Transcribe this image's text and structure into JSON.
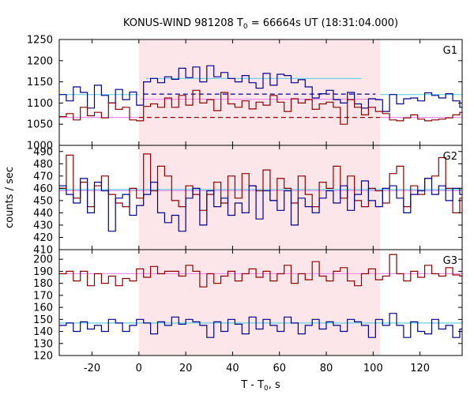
{
  "chart_data": {
    "type": "line",
    "title": "KONUS-WIND 981208 T",
    "title_sub": "0",
    "title_rest": " = 66664s UT (18:31:04.000)",
    "xlabel": "T - T",
    "xlabel_sub": "0",
    "xlabel_rest": ", s",
    "ylabel": "counts / sec",
    "xlim": [
      -34,
      138
    ],
    "x_ticks": [
      -20,
      0,
      20,
      40,
      60,
      80,
      100,
      120
    ],
    "x_tick_labels": [
      "-20",
      "0",
      "20",
      "40",
      "60",
      "80",
      "100",
      "120"
    ],
    "highlight_interval": {
      "x": [
        0,
        103
      ],
      "color": "#fde6ea"
    },
    "bin_edges_start": -34,
    "bin_width": 3,
    "colors": {
      "red": "#8b0000",
      "blue": "#00008b",
      "pink": "#f08cf0",
      "cyan": "#5fd2e6"
    },
    "panels": [
      {
        "label": "G1",
        "ylim": [
          1000,
          1250
        ],
        "y_ticks": [
          1000,
          1050,
          1100,
          1150,
          1200,
          1250
        ],
        "y_tick_labels": [
          "1000",
          "1050",
          "1100",
          "1150",
          "1200",
          "1250"
        ],
        "series": [
          {
            "color": "blue",
            "values": [
              1120,
              1105,
              1138,
              1125,
              1088,
              1142,
              1118,
              1100,
              1132,
              1108,
              1126,
              1095,
              1150,
              1158,
              1148,
              1162,
              1156,
              1182,
              1160,
              1185,
              1150,
              1188,
              1162,
              1172,
              1158,
              1150,
              1165,
              1148,
              1135,
              1170,
              1142,
              1168,
              1165,
              1148,
              1155,
              1138,
              1112,
              1122,
              1130,
              1108,
              1100,
              1125,
              1098,
              1088,
              1110,
              1108,
              1080,
              1120,
              1098,
              1110,
              1112,
              1105,
              1124,
              1118,
              1112,
              1122,
              1105,
              1090
            ]
          },
          {
            "color": "red",
            "values": [
              1068,
              1075,
              1060,
              1090,
              1070,
              1078,
              1065,
              1100,
              1085,
              1090,
              1060,
              1058,
              1092,
              1098,
              1090,
              1112,
              1090,
              1118,
              1095,
              1130,
              1100,
              1108,
              1082,
              1125,
              1098,
              1090,
              1105,
              1086,
              1102,
              1095,
              1118,
              1102,
              1080,
              1110,
              1100,
              1108,
              1085,
              1098,
              1102,
              1090,
              1050,
              1108,
              1090,
              1072,
              1090,
              1080,
              1075,
              1060,
              1058,
              1065,
              1072,
              1062,
              1058,
              1060,
              1062,
              1065,
              1072,
              1078
            ]
          }
        ],
        "levels": [
          {
            "color": "blue",
            "style": "dash",
            "y": 1121,
            "x": [
              2,
              101
            ]
          },
          {
            "color": "red",
            "style": "dash",
            "y": 1066,
            "x": [
              0,
              103
            ]
          },
          {
            "color": "cyan",
            "style": "solid",
            "y": 1120,
            "x": [
              -34,
              0
            ]
          },
          {
            "color": "cyan",
            "style": "solid",
            "y": 1158,
            "x": [
              3,
              95
            ]
          },
          {
            "color": "cyan",
            "style": "solid",
            "y": 1120,
            "x": [
              103,
              138
            ]
          },
          {
            "color": "pink",
            "style": "solid",
            "y": 1066,
            "x": [
              -34,
              0
            ]
          },
          {
            "color": "pink",
            "style": "solid",
            "y": 1109,
            "x": [
              1,
              103
            ]
          },
          {
            "color": "pink",
            "style": "solid",
            "y": 1066,
            "x": [
              103,
              138
            ]
          }
        ]
      },
      {
        "label": "G2",
        "ylim": [
          410,
          495
        ],
        "y_ticks": [
          410,
          420,
          430,
          440,
          450,
          460,
          470,
          480,
          490
        ],
        "y_tick_labels": [
          "410",
          "420",
          "430",
          "440",
          "450",
          "460",
          "470",
          "480",
          "490"
        ],
        "series": [
          {
            "color": "red",
            "values": [
              460,
              487,
              452,
              465,
              445,
              462,
              470,
              455,
              448,
              445,
              460,
              452,
              488,
              458,
              478,
              470,
              450,
              445,
              462,
              455,
              442,
              455,
              465,
              448,
              470,
              452,
              472,
              462,
              458,
              475,
              450,
              468,
              460,
              448,
              470,
              455,
              445,
              465,
              460,
              478,
              452,
              470,
              450,
              445,
              460,
              458,
              448,
              472,
              478,
              445,
              462,
              455,
              468,
              470,
              485,
              460,
              440,
              452
            ]
          },
          {
            "color": "blue",
            "values": [
              462,
              455,
              448,
              468,
              440,
              465,
              458,
              425,
              452,
              455,
              438,
              446,
              455,
              465,
              440,
              432,
              438,
              425,
              452,
              460,
              430,
              458,
              445,
              452,
              438,
              448,
              440,
              462,
              435,
              458,
              450,
              442,
              458,
              430,
              452,
              445,
              440,
              452,
              458,
              448,
              462,
              442,
              455,
              466,
              450,
              445,
              460,
              462,
              452,
              440,
              455,
              458,
              468,
              455,
              462,
              450,
              460,
              455
            ]
          }
        ],
        "levels": [
          {
            "color": "pink",
            "style": "solid",
            "y": 458,
            "x": [
              -34,
              138
            ]
          },
          {
            "color": "cyan",
            "style": "solid",
            "y": 459,
            "x": [
              -34,
              138
            ]
          }
        ]
      },
      {
        "label": "G3",
        "ylim": [
          120,
          208
        ],
        "y_ticks": [
          120,
          130,
          140,
          150,
          160,
          170,
          180,
          190,
          200
        ],
        "y_tick_labels": [
          "120",
          "130",
          "140",
          "150",
          "160",
          "170",
          "180",
          "190",
          "200"
        ],
        "series": [
          {
            "color": "red",
            "values": [
              188,
              190,
              182,
              190,
              178,
              188,
              180,
              186,
              178,
              184,
              182,
              192,
              185,
              194,
              188,
              190,
              190,
              186,
              195,
              190,
              177,
              188,
              180,
              186,
              190,
              182,
              188,
              192,
              185,
              190,
              182,
              188,
              195,
              180,
              188,
              183,
              198,
              186,
              182,
              190,
              193,
              182,
              178,
              188,
              192,
              183,
              186,
              204,
              188,
              182,
              190,
              185,
              195,
              188,
              186,
              193,
              187,
              186
            ]
          },
          {
            "color": "blue",
            "values": [
              145,
              147,
              140,
              148,
              142,
              145,
              140,
              150,
              147,
              140,
              145,
              150,
              147,
              138,
              148,
              145,
              152,
              146,
              150,
              148,
              145,
              135,
              148,
              140,
              150,
              146,
              138,
              152,
              142,
              150,
              145,
              140,
              152,
              147,
              138,
              145,
              150,
              142,
              148,
              145,
              140,
              150,
              148,
              145,
              135,
              150,
              145,
              155,
              145,
              135,
              148,
              140,
              138,
              150,
              142,
              145,
              135,
              142
            ]
          }
        ],
        "levels": [
          {
            "color": "pink",
            "style": "solid",
            "y": 188,
            "x": [
              -34,
              138
            ]
          },
          {
            "color": "cyan",
            "style": "solid",
            "y": 147,
            "x": [
              -34,
              138
            ]
          }
        ]
      }
    ]
  }
}
